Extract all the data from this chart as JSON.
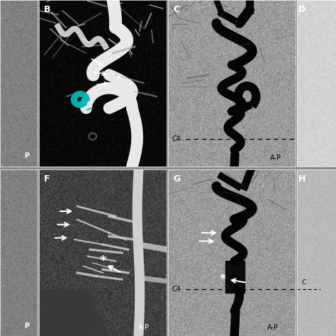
{
  "fig_bg": "#888888",
  "panel_border_color": "white",
  "panel_border_lw": 0.5,
  "left_strip": {
    "bg_mean": 128,
    "bg_std": 18,
    "label": "P",
    "label_color": "white"
  },
  "right_top_strip": {
    "bg_mean": 210,
    "bg_std": 12,
    "label": "D",
    "label_color": "white"
  },
  "right_bot_strip": {
    "bg_mean": 185,
    "bg_std": 12,
    "label": "H",
    "label_color": "white"
  },
  "panelB": {
    "label": "B",
    "label_color": "white",
    "bg_mean": 5,
    "bg_std": 8,
    "vessel_color": "#e8e8e8",
    "thin_vessel_color": "#aaaaaa",
    "coil_color": "#00b8b8",
    "arrow_color": "white",
    "asterisk_color": "white"
  },
  "panelC": {
    "label": "C",
    "label_color": "white",
    "bg_mean": 155,
    "bg_std": 22,
    "vessel_color": "#050505",
    "thin_vessel_color": "#303030",
    "c4_label": "C4",
    "c4_color": "black",
    "ap_label": "A-P",
    "ap_color": "black",
    "dashed_color": "black"
  },
  "panelF": {
    "label": "F",
    "label_color": "white",
    "bg_mean": 65,
    "bg_std": 20,
    "vessel_color": "#cccccc",
    "thin_vessel_color": "#aaaaaa",
    "arrow_color": "white",
    "asterisk_color": "white",
    "ap_label": "A-P",
    "ap_color": "white"
  },
  "panelG": {
    "label": "G",
    "label_color": "white",
    "bg_mean": 155,
    "bg_std": 22,
    "vessel_color": "#050505",
    "thin_vessel_color": "#303030",
    "c4_label": "C4",
    "c4_color": "black",
    "ap_label": "A-P",
    "ap_color": "black",
    "dashed_color": "black",
    "arrow_color": "white",
    "asterisk_color": "white"
  }
}
